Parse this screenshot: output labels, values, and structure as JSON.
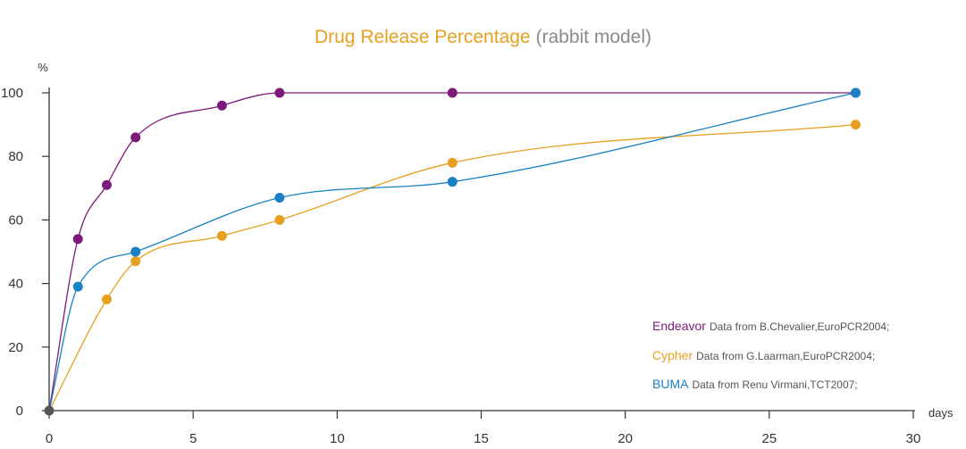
{
  "chart_data": {
    "type": "line",
    "title": "Drug Release Percentage",
    "subtitle": "(rabbit model)",
    "xlabel": "days",
    "ylabel": "%",
    "xlim": [
      0,
      30
    ],
    "ylim": [
      0,
      100
    ],
    "x_ticks": [
      0,
      5,
      10,
      15,
      20,
      25,
      30
    ],
    "y_ticks": [
      0,
      20,
      40,
      60,
      80,
      100
    ],
    "grid": false,
    "legend_position": "bottom-right",
    "series": [
      {
        "name": "Endeavor",
        "note": "Data from B.Chevalier,EuroPCR2004;",
        "color": "#7b1a7b",
        "x": [
          0,
          1,
          2,
          3,
          6,
          8,
          14,
          28
        ],
        "y": [
          0,
          54,
          71,
          86,
          96,
          100,
          100,
          100
        ]
      },
      {
        "name": "Cypher",
        "note": "Data from G.Laarman,EuroPCR2004;",
        "color": "#e8a020",
        "x": [
          0,
          2,
          3,
          6,
          8,
          14,
          28
        ],
        "y": [
          0,
          35,
          47,
          55,
          60,
          78,
          90
        ]
      },
      {
        "name": "BUMA",
        "note": "Data from Renu Virmani,TCT2007;",
        "color": "#1a82c4",
        "x": [
          0,
          1,
          3,
          8,
          14,
          28
        ],
        "y": [
          0,
          39,
          50,
          67,
          72,
          100
        ]
      }
    ],
    "origin_color": "#555555"
  }
}
